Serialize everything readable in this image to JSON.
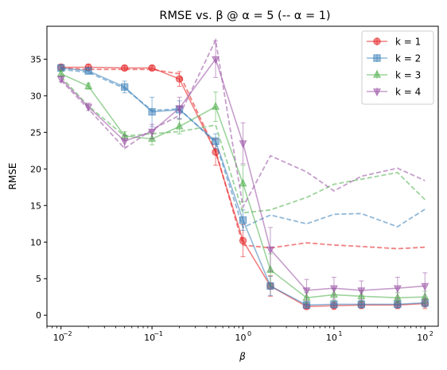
{
  "chart_data": {
    "type": "line",
    "title": "RMSE vs. β @ α = 5 (-- α = 1)",
    "xlabel": "β",
    "ylabel": "RMSE",
    "x_scale": "log",
    "xlim": [
      0.007,
      140
    ],
    "ylim": [
      -1.5,
      39.5
    ],
    "x_ticks": [
      {
        "value": 0.01,
        "base": "10",
        "exp": "−2"
      },
      {
        "value": 0.1,
        "base": "10",
        "exp": "−1"
      },
      {
        "value": 1,
        "base": "10",
        "exp": "0"
      },
      {
        "value": 10,
        "base": "10",
        "exp": "1"
      },
      {
        "value": 100,
        "base": "10",
        "exp": "2"
      }
    ],
    "y_ticks": [
      0,
      5,
      10,
      15,
      20,
      25,
      30,
      35
    ],
    "y_tick_labels": [
      "0",
      "5",
      "10",
      "15",
      "20",
      "25",
      "30",
      "35"
    ],
    "grid": false,
    "legend_position": "top-right",
    "x": [
      0.01,
      0.02,
      0.05,
      0.1,
      0.2,
      0.5,
      1,
      2,
      5,
      10,
      20,
      50,
      100
    ],
    "series": [
      {
        "name": "k = 1",
        "color": "#e41a1c",
        "marker": "circle",
        "values": [
          33.9,
          33.9,
          33.8,
          33.8,
          32.3,
          22.3,
          10.2,
          4.0,
          1.2,
          1.3,
          1.4,
          1.4,
          1.6
        ],
        "errors": [
          0.4,
          0.4,
          0.3,
          0.3,
          1.0,
          1.8,
          2.2,
          1.4,
          0.3,
          0.5,
          0.5,
          0.5,
          0.7
        ],
        "dashed_values": [
          33.8,
          33.6,
          33.6,
          33.6,
          33.0,
          22.5,
          9.6,
          9.2,
          9.9,
          9.6,
          9.4,
          9.1,
          9.3
        ]
      },
      {
        "name": "k = 2",
        "color": "#377eb8",
        "marker": "square",
        "values": [
          33.8,
          33.4,
          31.2,
          27.8,
          28.1,
          23.8,
          13.0,
          4.0,
          1.4,
          1.5,
          1.5,
          1.5,
          1.7
        ],
        "errors": [
          0.4,
          0.4,
          0.8,
          2.0,
          1.2,
          1.0,
          1.4,
          1.3,
          0.4,
          0.5,
          0.5,
          0.5,
          0.6
        ],
        "dashed_values": [
          33.6,
          33.2,
          31.0,
          28.0,
          28.2,
          23.6,
          12.0,
          13.7,
          12.5,
          13.8,
          13.9,
          12.1,
          14.5
        ]
      },
      {
        "name": "k = 3",
        "color": "#4daf4a",
        "marker": "triangle-up",
        "values": [
          33.0,
          31.3,
          24.5,
          24.1,
          25.8,
          28.5,
          18.0,
          6.2,
          2.4,
          2.8,
          2.6,
          2.4,
          2.5
        ],
        "errors": [
          0.4,
          0.4,
          0.6,
          0.8,
          1.0,
          2.0,
          2.5,
          2.2,
          0.7,
          0.8,
          0.7,
          0.7,
          0.8
        ],
        "dashed_values": [
          32.6,
          28.6,
          24.5,
          24.8,
          25.1,
          26.0,
          14.0,
          14.4,
          16.1,
          17.9,
          18.6,
          19.5,
          15.8
        ]
      },
      {
        "name": "k = 4",
        "color": "#984ea3",
        "marker": "triangle-down",
        "values": [
          32.3,
          28.5,
          23.8,
          25.1,
          28.3,
          35.0,
          23.5,
          9.0,
          3.4,
          3.7,
          3.4,
          3.7,
          4.0
        ],
        "errors": [
          0.4,
          0.5,
          0.8,
          1.0,
          1.5,
          2.5,
          2.8,
          3.0,
          1.5,
          1.5,
          1.3,
          1.5,
          1.8
        ],
        "dashed_values": [
          32.1,
          28.2,
          22.8,
          25.4,
          27.3,
          37.6,
          14.8,
          21.8,
          19.6,
          17.0,
          19.0,
          20.1,
          18.4
        ]
      }
    ]
  }
}
